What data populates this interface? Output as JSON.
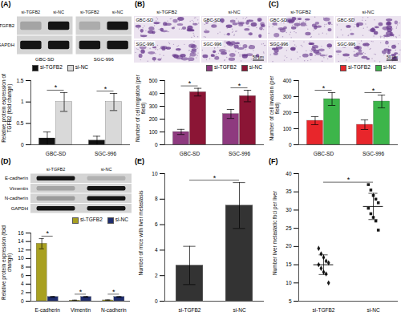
{
  "chart_data": [
    {
      "panel": "(A)",
      "type": "bar",
      "categories": [
        "GBC-SD",
        "SGC-996"
      ],
      "series": [
        {
          "name": "si-TGFB2",
          "color": "#111111",
          "values": [
            0.15,
            0.1
          ],
          "errors": [
            0.15,
            0.1
          ]
        },
        {
          "name": "si-NC",
          "color": "#d9d9d9",
          "values": [
            1,
            1
          ],
          "errors": [
            0.22,
            0.2
          ]
        }
      ],
      "y_label": "Relative protein expression of TGFB2 (fold change)",
      "ylim": [
        0,
        1.5
      ],
      "yticks": [
        0,
        0.5,
        1,
        1.5
      ],
      "legend": "top-left",
      "annotations": [
        "*",
        "*"
      ],
      "blot": {
        "groups": [
          "GBC-SD",
          "SGC-996"
        ],
        "lanes": [
          "si-TGFB2",
          "si-NC"
        ],
        "rows": [
          "TGFB2",
          "GAPDH"
        ]
      }
    },
    {
      "panel": "(B)",
      "type": "bar",
      "categories": [
        "GBC-SD",
        "SGC-996"
      ],
      "series": [
        {
          "name": "si-TGFB2",
          "color": "#8e3a7f",
          "values": [
            100,
            240
          ],
          "errors": [
            20,
            35
          ]
        },
        {
          "name": "si-NC",
          "color": "#8b1535",
          "values": [
            410,
            380
          ],
          "errors": [
            30,
            45
          ]
        }
      ],
      "y_label": "Number of cell migration (per field)",
      "ylim": [
        0,
        500
      ],
      "yticks": [
        0,
        100,
        200,
        300,
        400,
        500
      ],
      "legend": "top-right",
      "annotations": [
        "*",
        "*"
      ],
      "images": {
        "columns": [
          "si-TGFB2",
          "si-NC"
        ],
        "rows": [
          "GBC-SD",
          "SGC-996"
        ],
        "scale_bar": "50 μm"
      }
    },
    {
      "panel": "(C)",
      "type": "bar",
      "categories": [
        "GBC-SD",
        "SGC-996"
      ],
      "series": [
        {
          "name": "si-TGFB2",
          "color": "#e8262b",
          "values": [
            150,
            125
          ],
          "errors": [
            25,
            30
          ]
        },
        {
          "name": "si-NC",
          "color": "#3db54a",
          "values": [
            285,
            270
          ],
          "errors": [
            40,
            40
          ]
        }
      ],
      "y_label": "Number of cell invasion (per field)",
      "ylim": [
        0,
        400
      ],
      "yticks": [
        0,
        100,
        200,
        300,
        400
      ],
      "legend": "top-right",
      "annotations": [
        "*",
        "*"
      ],
      "images": {
        "columns": [
          "si-TGFB2",
          "si-NC"
        ],
        "rows": [
          "GBC-SD",
          "SGC-996"
        ],
        "scale_bar": "50 μm"
      }
    },
    {
      "panel": "(D)",
      "type": "bar",
      "categories": [
        "E-cadherin",
        "Vimentin",
        "N-cadherin"
      ],
      "series": [
        {
          "name": "si-TGFB2",
          "color": "#a8a020",
          "values": [
            13.5,
            0.15,
            0.2
          ],
          "errors": [
            1.2,
            0.1,
            0.1
          ]
        },
        {
          "name": "si-NC",
          "color": "#1f2d6e",
          "values": [
            1,
            1,
            1
          ],
          "errors": [
            0.1,
            0.08,
            0.08
          ]
        }
      ],
      "y_label": "Relative protein expression (fold change)",
      "ylim": [
        0,
        16
      ],
      "yticks": [
        0,
        2,
        4,
        6,
        8,
        10,
        12,
        14,
        16
      ],
      "legend": "top-right",
      "annotations": [
        "*",
        "*",
        "*"
      ],
      "blot": {
        "lanes": [
          "si-TGFB2",
          "si-NC"
        ],
        "rows": [
          "E-cadherin",
          "Vimentin",
          "N-cadherin",
          "GAPDH"
        ]
      }
    },
    {
      "panel": "(E)",
      "type": "bar",
      "categories": [
        "si-TGFB2",
        "si-NC"
      ],
      "values": [
        2.8,
        7.5
      ],
      "errors": [
        1.5,
        1.8
      ],
      "color": "#333333",
      "y_label": "Number of mice with liver metastasis",
      "ylim": [
        0,
        10
      ],
      "yticks": [
        0,
        2,
        4,
        6,
        8,
        10
      ],
      "annotations": [
        "*"
      ]
    },
    {
      "panel": "(F)",
      "type": "scatter",
      "series": [
        {
          "name": "si-TGFB2",
          "color": "#1a1a1a",
          "marker": "diamond",
          "values": [
            19.5,
            18,
            17,
            16,
            15.5,
            15,
            14,
            13,
            12.5,
            10
          ]
        },
        {
          "name": "si-NC",
          "color": "#1a1a1a",
          "marker": "square",
          "values": [
            37,
            35.5,
            34,
            33,
            32,
            30.5,
            29,
            28,
            27,
            24.5
          ]
        }
      ],
      "means": [
        15,
        31
      ],
      "errors": [
        2.7,
        3.6
      ],
      "y_label": "Number liver metastatic foci per liver",
      "ylim": [
        5,
        40
      ],
      "yticks": [
        5,
        10,
        15,
        20,
        25,
        30,
        35,
        40
      ],
      "annotations": [
        "*"
      ]
    }
  ]
}
